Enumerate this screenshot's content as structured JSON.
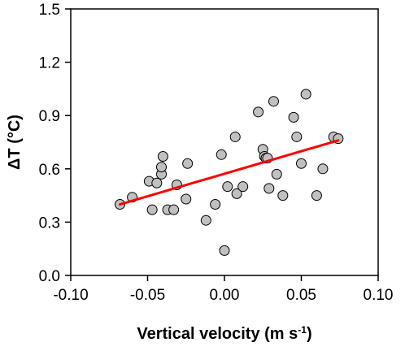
{
  "chart_data": {
    "type": "scatter",
    "xlabel": {
      "main": "Vertical velocity (m s",
      "sup": "-1",
      "end": ")"
    },
    "ylabel": "ΔT (°C)",
    "xlim": [
      -0.1,
      0.1
    ],
    "ylim": [
      0.0,
      1.5
    ],
    "x_ticks": [
      -0.1,
      -0.05,
      0.0,
      0.05,
      0.1
    ],
    "x_tick_labels": [
      "-0.10",
      "-0.05",
      "0.00",
      "0.05",
      "0.10"
    ],
    "y_ticks": [
      0.0,
      0.3,
      0.6,
      0.9,
      1.2,
      1.5
    ],
    "y_tick_labels": [
      "0.0",
      "0.3",
      "0.6",
      "0.9",
      "1.2",
      "1.5"
    ],
    "grid": false,
    "point_color": "#c0c0c0",
    "point_edge_color": "#000000",
    "trendline_color": "#ff0000",
    "trendline": {
      "x": [
        -0.068,
        0.074
      ],
      "y": [
        0.4,
        0.76
      ]
    },
    "points": [
      {
        "x": -0.068,
        "y": 0.4
      },
      {
        "x": -0.06,
        "y": 0.44
      },
      {
        "x": -0.049,
        "y": 0.53
      },
      {
        "x": -0.047,
        "y": 0.37
      },
      {
        "x": -0.044,
        "y": 0.52
      },
      {
        "x": -0.041,
        "y": 0.57
      },
      {
        "x": -0.041,
        "y": 0.61
      },
      {
        "x": -0.04,
        "y": 0.67
      },
      {
        "x": -0.037,
        "y": 0.37
      },
      {
        "x": -0.033,
        "y": 0.37
      },
      {
        "x": -0.031,
        "y": 0.51
      },
      {
        "x": -0.025,
        "y": 0.43
      },
      {
        "x": -0.024,
        "y": 0.63
      },
      {
        "x": -0.012,
        "y": 0.31
      },
      {
        "x": -0.006,
        "y": 0.4
      },
      {
        "x": -0.002,
        "y": 0.68
      },
      {
        "x": 0.0,
        "y": 0.14
      },
      {
        "x": 0.002,
        "y": 0.5
      },
      {
        "x": 0.007,
        "y": 0.78
      },
      {
        "x": 0.008,
        "y": 0.46
      },
      {
        "x": 0.012,
        "y": 0.5
      },
      {
        "x": 0.022,
        "y": 0.92
      },
      {
        "x": 0.025,
        "y": 0.71
      },
      {
        "x": 0.026,
        "y": 0.67
      },
      {
        "x": 0.027,
        "y": 0.66
      },
      {
        "x": 0.028,
        "y": 0.66
      },
      {
        "x": 0.029,
        "y": 0.49
      },
      {
        "x": 0.032,
        "y": 0.98
      },
      {
        "x": 0.034,
        "y": 0.57
      },
      {
        "x": 0.038,
        "y": 0.45
      },
      {
        "x": 0.045,
        "y": 0.89
      },
      {
        "x": 0.047,
        "y": 0.78
      },
      {
        "x": 0.05,
        "y": 0.63
      },
      {
        "x": 0.053,
        "y": 1.02
      },
      {
        "x": 0.06,
        "y": 0.45
      },
      {
        "x": 0.064,
        "y": 0.6
      },
      {
        "x": 0.071,
        "y": 0.78
      },
      {
        "x": 0.074,
        "y": 0.77
      }
    ]
  }
}
